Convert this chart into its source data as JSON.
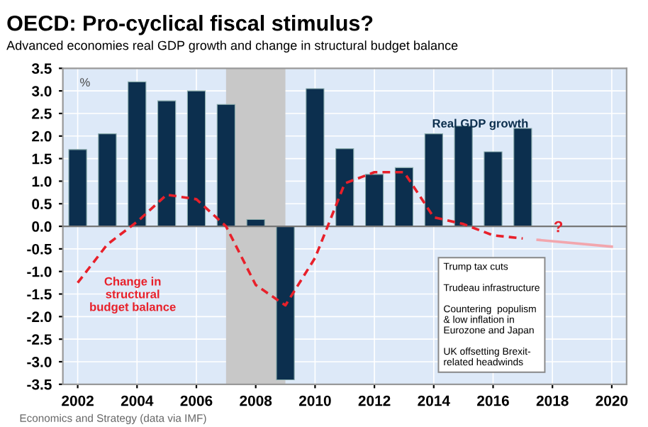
{
  "chart_data": {
    "type": "bar",
    "title": "OECD: Pro-cyclical fiscal stimulus?",
    "subtitle": "Advanced economies real GDP growth and change in structural budget balance",
    "ylabel": "%",
    "x": [
      2002,
      2003,
      2004,
      2005,
      2006,
      2007,
      2008,
      2009,
      2010,
      2011,
      2012,
      2013,
      2014,
      2015,
      2016,
      2017
    ],
    "series": [
      {
        "name": "Real GDP growth",
        "color": "#0c2f4e",
        "values": [
          1.7,
          2.05,
          3.2,
          2.78,
          3.0,
          2.7,
          0.15,
          -3.4,
          3.05,
          1.72,
          1.15,
          1.3,
          2.05,
          2.22,
          1.65,
          2.17
        ]
      },
      {
        "name": "Change in structural budget balance",
        "type": "line",
        "color": "#e8202a",
        "line_style": "dashed",
        "values": [
          -1.25,
          -0.4,
          0.1,
          0.7,
          0.6,
          0.0,
          -1.3,
          -1.75,
          -0.7,
          0.95,
          1.2,
          1.2,
          0.2,
          0.05,
          -0.2,
          -0.27
        ]
      },
      {
        "type": "line",
        "color": "#f2a6ad",
        "line_style": "solid",
        "x": [
          2017.5,
          2020
        ],
        "values": [
          -0.3,
          -0.45
        ]
      }
    ],
    "xlim": [
      2001.5,
      2020.5
    ],
    "xticks": [
      2002,
      2004,
      2006,
      2008,
      2010,
      2012,
      2014,
      2016,
      2018,
      2020
    ],
    "ylim": [
      -3.5,
      3.5
    ],
    "yticks": [
      {
        "value": -3.5,
        "label": "-3.5"
      },
      {
        "value": -3,
        "label": "-3.0"
      },
      {
        "value": -2.5,
        "label": "-2.5"
      },
      {
        "value": -2,
        "label": "-2.0"
      },
      {
        "value": -1.5,
        "label": "-1.5"
      },
      {
        "value": -1,
        "label": "-1.0"
      },
      {
        "value": -0.5,
        "label": "-0.5"
      },
      {
        "value": 0,
        "label": "0.0"
      },
      {
        "value": 0.5,
        "label": "0.5"
      },
      {
        "value": 1,
        "label": "1.0"
      },
      {
        "value": 1.5,
        "label": "1.5"
      },
      {
        "value": 2,
        "label": "2.0"
      },
      {
        "value": 2.5,
        "label": "2.5"
      },
      {
        "value": 3,
        "label": "3.0"
      },
      {
        "value": 3.5,
        "label": "3.5"
      }
    ],
    "bands": [
      {
        "axis": "x",
        "from": 2007,
        "to": 2009,
        "color": "#c8c8c8"
      }
    ],
    "annotations": [
      {
        "text": "?",
        "x": 2018.2,
        "y": -0.2
      },
      "Trump tax cuts\n\nTrudeau infrastructure\n\nCountering  populism\n& low inflation in\nEurozone and Japan\n\nUK offsetting Brexit-\nrelated headwinds",
      "Economics and Strategy (data via IMF)"
    ],
    "grid": true,
    "legend": false
  }
}
